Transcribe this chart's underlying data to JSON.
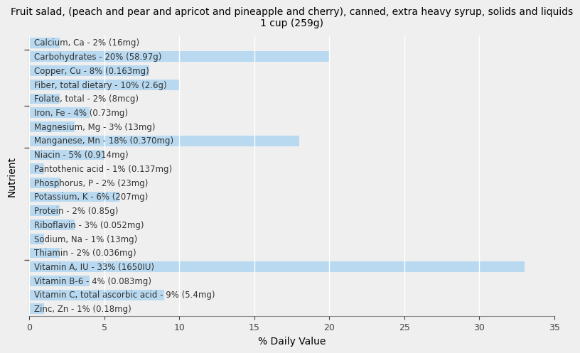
{
  "title": "Fruit salad, (peach and pear and apricot and pineapple and cherry), canned, extra heavy syrup, solids and liquids\n1 cup (259g)",
  "xlabel": "% Daily Value",
  "ylabel": "Nutrient",
  "xlim": [
    0,
    35
  ],
  "xticks": [
    0,
    5,
    10,
    15,
    20,
    25,
    30,
    35
  ],
  "bar_color": "#b8d9f0",
  "background_color": "#efefef",
  "nutrients": [
    {
      "label": "Calcium, Ca - 2% (16mg)",
      "value": 2
    },
    {
      "label": "Carbohydrates - 20% (58.97g)",
      "value": 20
    },
    {
      "label": "Copper, Cu - 8% (0.163mg)",
      "value": 8
    },
    {
      "label": "Fiber, total dietary - 10% (2.6g)",
      "value": 10
    },
    {
      "label": "Folate, total - 2% (8mcg)",
      "value": 2
    },
    {
      "label": "Iron, Fe - 4% (0.73mg)",
      "value": 4
    },
    {
      "label": "Magnesium, Mg - 3% (13mg)",
      "value": 3
    },
    {
      "label": "Manganese, Mn - 18% (0.370mg)",
      "value": 18
    },
    {
      "label": "Niacin - 5% (0.914mg)",
      "value": 5
    },
    {
      "label": "Pantothenic acid - 1% (0.137mg)",
      "value": 1
    },
    {
      "label": "Phosphorus, P - 2% (23mg)",
      "value": 2
    },
    {
      "label": "Potassium, K - 6% (207mg)",
      "value": 6
    },
    {
      "label": "Protein - 2% (0.85g)",
      "value": 2
    },
    {
      "label": "Riboflavin - 3% (0.052mg)",
      "value": 3
    },
    {
      "label": "Sodium, Na - 1% (13mg)",
      "value": 1
    },
    {
      "label": "Thiamin - 2% (0.036mg)",
      "value": 2
    },
    {
      "label": "Vitamin A, IU - 33% (1650IU)",
      "value": 33
    },
    {
      "label": "Vitamin B-6 - 4% (0.083mg)",
      "value": 4
    },
    {
      "label": "Vitamin C, total ascorbic acid - 9% (5.4mg)",
      "value": 9
    },
    {
      "label": "Zinc, Zn - 1% (0.18mg)",
      "value": 1
    }
  ],
  "ytick_positions": [
    18.5,
    14.5,
    11.5,
    3.5
  ],
  "grid_color": "#ffffff",
  "tick_label_fontsize": 9,
  "axis_label_fontsize": 10,
  "title_fontsize": 10,
  "bar_height": 0.75,
  "label_fontsize": 8.5,
  "label_color": "#333333"
}
